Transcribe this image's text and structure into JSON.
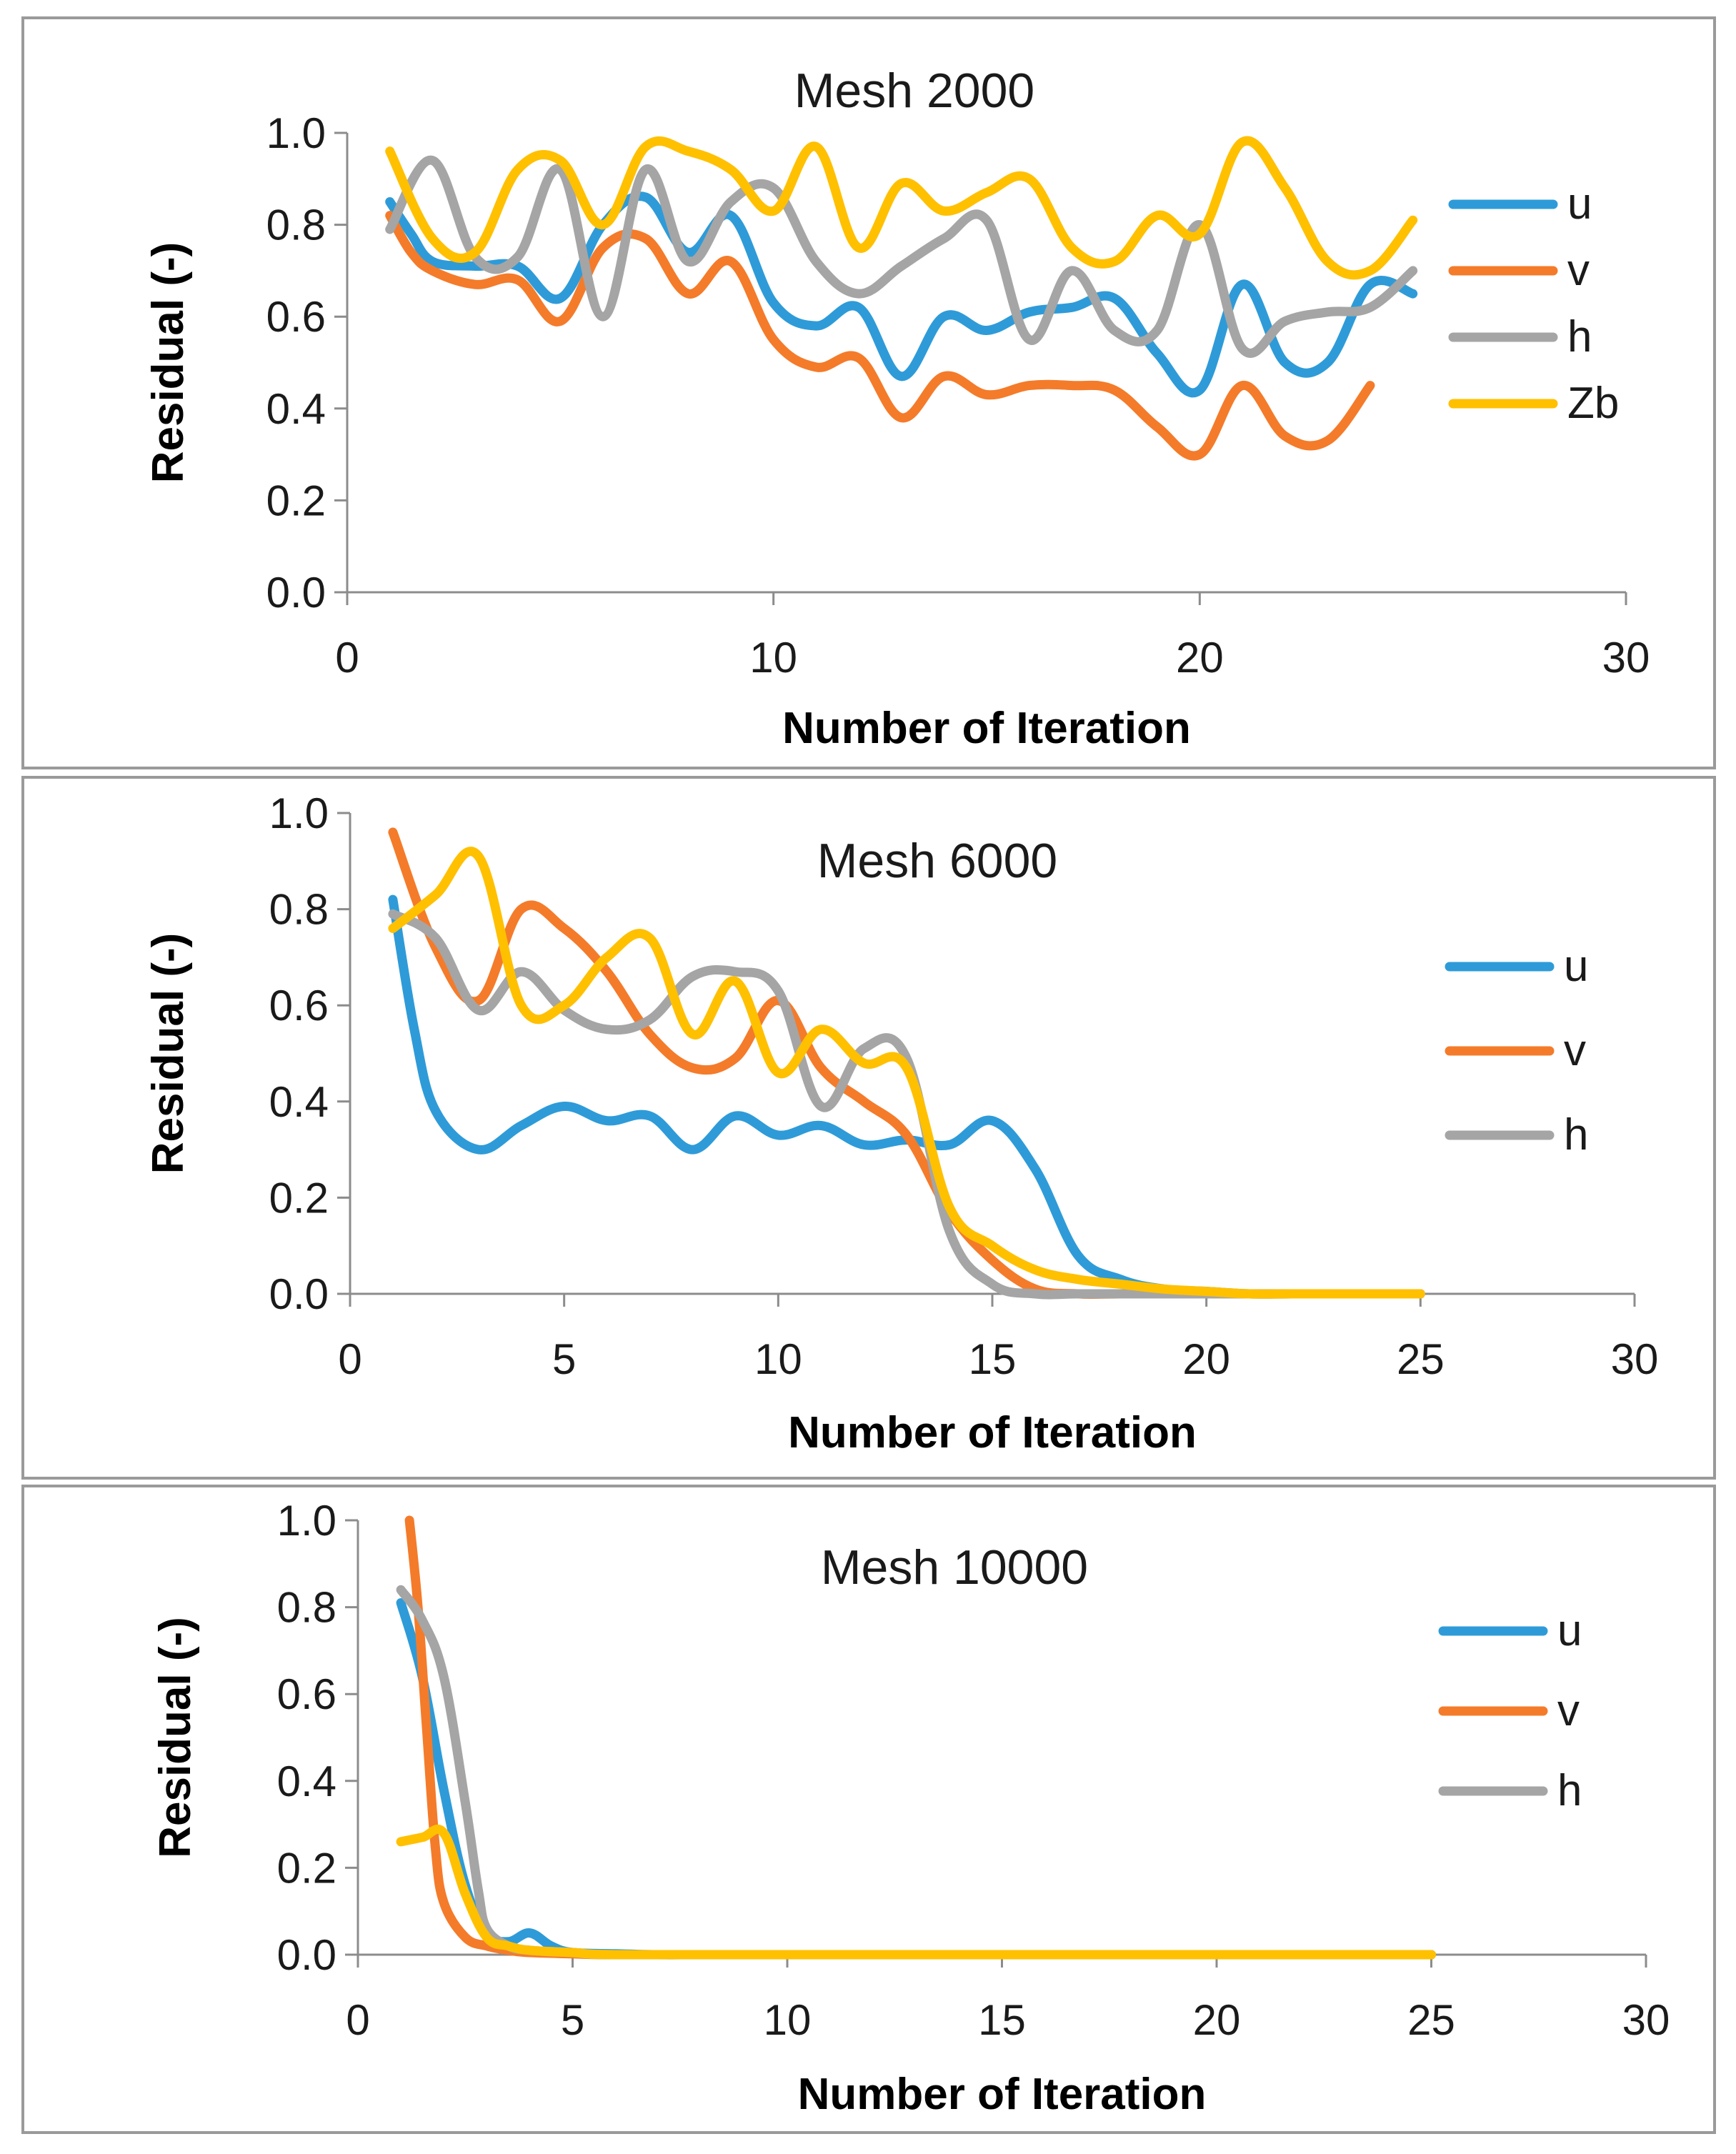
{
  "colors": {
    "u": "#2E9BD8",
    "v": "#F47B2A",
    "h": "#A5A5A5",
    "Zb": "#FFC000"
  },
  "chart_data": [
    {
      "type": "line",
      "title": "Mesh 2000",
      "xlabel": "Number of Iteration",
      "ylabel": "Residual (-)",
      "xlim": [
        0,
        30
      ],
      "ylim": [
        0,
        1
      ],
      "xticks": [
        "0",
        "10",
        "20",
        "30"
      ],
      "yticks": [
        "0.0",
        "0.2",
        "0.4",
        "0.6",
        "0.8",
        "1.0"
      ],
      "legend": "right",
      "series": [
        {
          "name": "u",
          "x": [
            1,
            1.5,
            2,
            3,
            4,
            5,
            6,
            7,
            8,
            9,
            10,
            11,
            12,
            13,
            14,
            15,
            16,
            17,
            18,
            19,
            20,
            21,
            22,
            23,
            24,
            25
          ],
          "values": [
            0.85,
            0.78,
            0.72,
            0.71,
            0.71,
            0.64,
            0.8,
            0.86,
            0.74,
            0.82,
            0.63,
            0.58,
            0.62,
            0.47,
            0.6,
            0.57,
            0.61,
            0.62,
            0.64,
            0.52,
            0.44,
            0.67,
            0.5,
            0.5,
            0.67,
            0.65
          ]
        },
        {
          "name": "v",
          "x": [
            1,
            1.5,
            2,
            3,
            4,
            5,
            6,
            7,
            8,
            9,
            10,
            11,
            12,
            13,
            14,
            15,
            16,
            17,
            18,
            19,
            20,
            21,
            22,
            23,
            24
          ],
          "values": [
            0.82,
            0.74,
            0.7,
            0.67,
            0.68,
            0.59,
            0.75,
            0.77,
            0.65,
            0.72,
            0.55,
            0.49,
            0.51,
            0.38,
            0.47,
            0.43,
            0.45,
            0.45,
            0.44,
            0.36,
            0.3,
            0.45,
            0.34,
            0.33,
            0.45
          ]
        },
        {
          "name": "h",
          "x": [
            1,
            2,
            3,
            4,
            5,
            6,
            7,
            8,
            9,
            10,
            11,
            12,
            13,
            14,
            15,
            16,
            17,
            18,
            19,
            20,
            21,
            22,
            23,
            24,
            25
          ],
          "values": [
            0.79,
            0.94,
            0.73,
            0.73,
            0.92,
            0.6,
            0.92,
            0.72,
            0.85,
            0.88,
            0.72,
            0.65,
            0.71,
            0.77,
            0.81,
            0.55,
            0.7,
            0.57,
            0.57,
            0.8,
            0.53,
            0.59,
            0.61,
            0.62,
            0.7
          ]
        },
        {
          "name": "Zb",
          "x": [
            1,
            2,
            3,
            4,
            5,
            6,
            7,
            8,
            9,
            10,
            11,
            12,
            13,
            14,
            15,
            16,
            17,
            18,
            19,
            20,
            21,
            22,
            23,
            24,
            25
          ],
          "values": [
            0.96,
            0.77,
            0.74,
            0.92,
            0.94,
            0.8,
            0.97,
            0.96,
            0.92,
            0.83,
            0.97,
            0.75,
            0.89,
            0.83,
            0.87,
            0.9,
            0.75,
            0.72,
            0.82,
            0.78,
            0.98,
            0.88,
            0.72,
            0.7,
            0.81
          ]
        }
      ]
    },
    {
      "type": "line",
      "title": "Mesh 6000",
      "xlabel": "Number of Iteration",
      "ylabel": "Residual (-)",
      "xlim": [
        0,
        30
      ],
      "ylim": [
        0,
        1
      ],
      "xticks": [
        "0",
        "5",
        "10",
        "15",
        "20",
        "25",
        "30"
      ],
      "yticks": [
        "0.0",
        "0.2",
        "0.4",
        "0.6",
        "0.8",
        "1.0"
      ],
      "legend": "right",
      "series": [
        {
          "name": "u",
          "x": [
            1,
            1.5,
            2,
            3,
            4,
            5,
            6,
            7,
            8,
            9,
            10,
            11,
            12,
            13,
            14,
            15,
            16,
            17,
            18,
            19,
            20,
            21,
            22,
            23,
            24,
            25
          ],
          "values": [
            0.82,
            0.55,
            0.38,
            0.3,
            0.35,
            0.39,
            0.36,
            0.37,
            0.3,
            0.37,
            0.33,
            0.35,
            0.31,
            0.32,
            0.31,
            0.36,
            0.26,
            0.08,
            0.03,
            0.01,
            0.005,
            0,
            0,
            0,
            0,
            0
          ]
        },
        {
          "name": "v",
          "x": [
            1,
            2,
            3,
            4,
            5,
            6,
            7,
            8,
            9,
            10,
            11,
            12,
            13,
            14,
            15,
            16,
            17,
            18,
            19,
            20,
            21,
            22,
            23,
            24,
            25
          ],
          "values": [
            0.96,
            0.72,
            0.61,
            0.8,
            0.76,
            0.67,
            0.54,
            0.47,
            0.49,
            0.61,
            0.47,
            0.4,
            0.33,
            0.17,
            0.07,
            0.01,
            0,
            0,
            0,
            0,
            0,
            0,
            0,
            0,
            0
          ]
        },
        {
          "name": "h",
          "x": [
            1,
            2,
            3,
            4,
            5,
            6,
            7,
            8,
            9,
            10,
            11,
            12,
            13,
            14,
            15,
            16,
            17,
            18,
            19,
            20,
            21,
            22,
            23,
            24,
            25
          ],
          "values": [
            0.79,
            0.74,
            0.59,
            0.67,
            0.59,
            0.55,
            0.57,
            0.66,
            0.67,
            0.63,
            0.39,
            0.51,
            0.49,
            0.13,
            0.02,
            0,
            0,
            0,
            0,
            0,
            0,
            0,
            0,
            0,
            0
          ]
        },
        {
          "name": "Zb",
          "x": [
            1,
            2,
            3,
            4,
            5,
            6,
            7,
            8,
            9,
            10,
            11,
            12,
            13,
            14,
            15,
            16,
            17,
            18,
            19,
            20,
            21,
            22,
            23,
            24,
            25
          ],
          "values": [
            0.76,
            0.83,
            0.91,
            0.6,
            0.6,
            0.7,
            0.74,
            0.54,
            0.65,
            0.46,
            0.55,
            0.48,
            0.47,
            0.18,
            0.1,
            0.05,
            0.03,
            0.02,
            0.01,
            0.005,
            0,
            0,
            0,
            0,
            0
          ]
        }
      ]
    },
    {
      "type": "line",
      "title": "Mesh 10000",
      "xlabel": "Number of Iteration",
      "ylabel": "Residual (-)",
      "xlim": [
        0,
        30
      ],
      "ylim": [
        0,
        1
      ],
      "xticks": [
        "0",
        "5",
        "10",
        "15",
        "20",
        "25",
        "30"
      ],
      "yticks": [
        "0.0",
        "0.2",
        "0.4",
        "0.6",
        "0.8",
        "1.0"
      ],
      "legend": "right",
      "series": [
        {
          "name": "u",
          "x": [
            1,
            1.5,
            2,
            2.5,
            3,
            3.5,
            4,
            4.5,
            5,
            6,
            7,
            8,
            10,
            15,
            20,
            25
          ],
          "values": [
            0.81,
            0.64,
            0.38,
            0.16,
            0.05,
            0.03,
            0.05,
            0.02,
            0.005,
            0.002,
            0,
            0,
            0,
            0,
            0,
            0
          ]
        },
        {
          "name": "v",
          "x": [
            1.2,
            1.4,
            1.6,
            1.8,
            2,
            2.5,
            3,
            3.5,
            4,
            5,
            6,
            10,
            15,
            20,
            25
          ],
          "values": [
            1.0,
            0.8,
            0.52,
            0.25,
            0.12,
            0.04,
            0.02,
            0.01,
            0.005,
            0.002,
            0,
            0,
            0,
            0,
            0
          ]
        },
        {
          "name": "h",
          "x": [
            1,
            1.5,
            2,
            2.5,
            2.8,
            3,
            3.5,
            4,
            5,
            6,
            10,
            15,
            20,
            25
          ],
          "values": [
            0.84,
            0.77,
            0.64,
            0.35,
            0.15,
            0.06,
            0.02,
            0.01,
            0.005,
            0,
            0,
            0,
            0,
            0
          ]
        },
        {
          "name": "Zb",
          "x": [
            1,
            1.5,
            2,
            2.5,
            3,
            3.5,
            4,
            5,
            6,
            10,
            15,
            20,
            25
          ],
          "values": [
            0.26,
            0.27,
            0.28,
            0.14,
            0.04,
            0.02,
            0.01,
            0.005,
            0,
            0,
            0,
            0,
            0
          ]
        }
      ]
    }
  ],
  "legends": [
    [
      "u",
      "v",
      "h",
      "Zb"
    ],
    [
      "u",
      "v",
      "h"
    ],
    [
      "u",
      "v",
      "h"
    ]
  ]
}
